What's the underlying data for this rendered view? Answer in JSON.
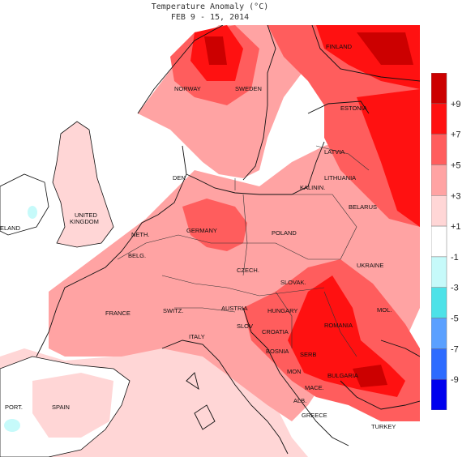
{
  "title": {
    "line1": "Temperature Anomaly (°C)",
    "line2": "FEB 9 - 15, 2014"
  },
  "legend": {
    "labels": [
      "+9",
      "+7",
      "+5",
      "+3",
      "+1",
      "-1",
      "-3",
      "-5",
      "-7",
      "-9"
    ],
    "colors": [
      "#cc0000",
      "#ff1111",
      "#ff5d5d",
      "#ffa3a3",
      "#ffd6d6",
      "#ffffff",
      "#c6fafa",
      "#4de2e8",
      "#5aa0ff",
      "#2d6bff",
      "#0000ee"
    ]
  },
  "countries": {
    "finland": "FINLAND",
    "norway": "NORWAY",
    "sweden": "SWEDEN",
    "estonia": "ESTONIA",
    "latvia": "LATVIA",
    "lithuania": "LITHUANIA",
    "kalinin": "KALININ.",
    "belarus": "BELARUS",
    "den": "DEN",
    "uk": "UNITED KINGDOM",
    "ireland": "ELAND",
    "neth": "NETH.",
    "belg": "BELG.",
    "germany": "GERMANY",
    "poland": "POLAND",
    "ukraine": "UKRAINE",
    "czech": "CZECH.",
    "slovak": "SLOVAK.",
    "mol": "MOL.",
    "hungary": "HUNGARY",
    "romania": "ROMANIA",
    "france": "FRANCE",
    "switz": "SWITZ.",
    "austria": "AUSTRIA",
    "slov": "SLOV",
    "croatia": "CROATIA",
    "bosnia": "BOSNIA",
    "serb": "SERB",
    "italy": "ITALY",
    "mon": "MON",
    "maced": "MACE.",
    "bulgaria": "BULGARIA",
    "alb": "ALB.",
    "greece": "GREECE",
    "turkey": "TURKEY",
    "port": "PORT.",
    "spain": "SPAIN"
  }
}
